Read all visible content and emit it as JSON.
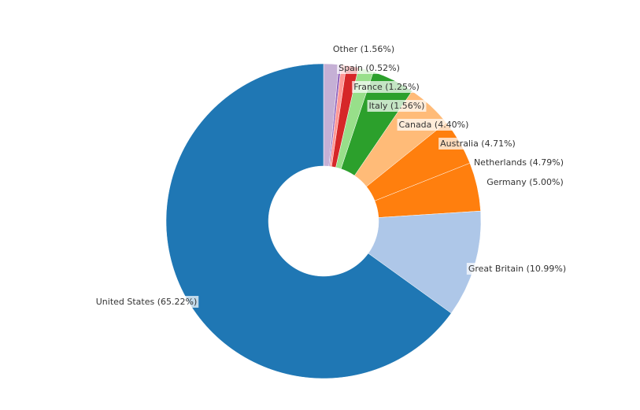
{
  "chart_data": {
    "type": "pie",
    "donut": true,
    "slices": [
      {
        "label": "Other",
        "percent": 1.56,
        "display": "Other (1.56%)",
        "color": "#c5b0d5"
      },
      {
        "label": "",
        "percent": 0.25,
        "display": "",
        "color": "#9467bd"
      },
      {
        "label": "Spain",
        "percent": 0.52,
        "display": "Spain (0.52%)",
        "color": "#ff9896"
      },
      {
        "label": "France",
        "percent": 1.25,
        "display": "France (1.25%)",
        "color": "#d62728"
      },
      {
        "label": "Italy",
        "percent": 1.56,
        "display": "Italy (1.56%)",
        "color": "#98df8a"
      },
      {
        "label": "Canada",
        "percent": 4.4,
        "display": "Canada (4.40%)",
        "color": "#2ca02c"
      },
      {
        "label": "Australia",
        "percent": 4.71,
        "display": "Australia (4.71%)",
        "color": "#ffbb78"
      },
      {
        "label": "Netherlands",
        "percent": 4.79,
        "display": "Netherlands (4.79%)",
        "color": "#ff7f0e"
      },
      {
        "label": "Germany",
        "percent": 5.0,
        "display": "Germany (5.00%)",
        "color": "#ff7f0e"
      },
      {
        "label": "Great Britain",
        "percent": 10.99,
        "display": "Great Britain (10.99%)",
        "color": "#aec7e8"
      },
      {
        "label": "United States",
        "percent": 65.22,
        "display": "United States (65.22%)",
        "color": "#1f77b4"
      }
    ]
  }
}
